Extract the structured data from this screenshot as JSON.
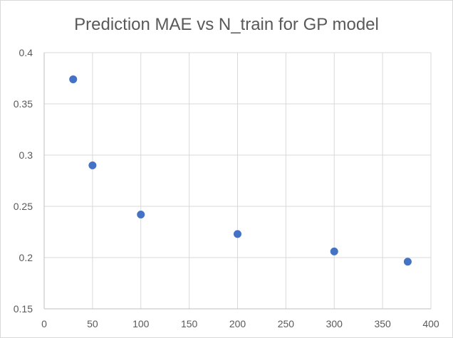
{
  "chart_data": {
    "type": "scatter",
    "title": "Prediction MAE vs N_train for GP model",
    "xlabel": "",
    "ylabel": "",
    "xlim": [
      0,
      400
    ],
    "ylim": [
      0.15,
      0.4
    ],
    "x_ticks": [
      "0",
      "50",
      "100",
      "150",
      "200",
      "250",
      "300",
      "350",
      "400"
    ],
    "y_ticks": [
      "0.15",
      "0.2",
      "0.25",
      "0.3",
      "0.35",
      "0.4"
    ],
    "x_tick_values": [
      0,
      50,
      100,
      150,
      200,
      250,
      300,
      350,
      400
    ],
    "y_tick_values": [
      0.15,
      0.2,
      0.25,
      0.3,
      0.35,
      0.4
    ],
    "grid": true,
    "legend": "none",
    "marker_color": "#4472c4",
    "series": [
      {
        "x": [
          30,
          50,
          100,
          200,
          300,
          376
        ],
        "y": [
          0.374,
          0.29,
          0.242,
          0.223,
          0.206,
          0.196
        ]
      }
    ]
  }
}
